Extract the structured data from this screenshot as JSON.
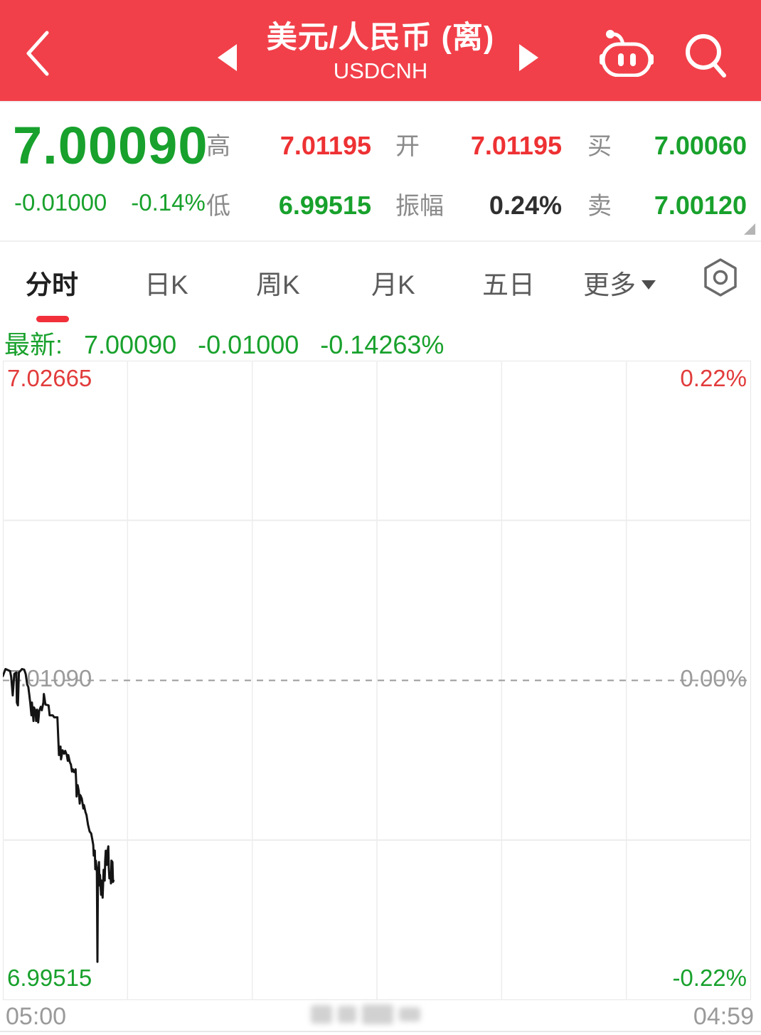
{
  "palette": {
    "header_red": "#f1404a",
    "up_red": "#ee3133",
    "down_green": "#18a12c",
    "neutral_dark": "#2f2f2f",
    "label_gray": "#8b8b8b",
    "axis_gray": "#9b9b9b",
    "active_tab_underline": "#f1303a"
  },
  "header": {
    "title": "美元/人民币 (离)",
    "subtitle": "USDCNH",
    "icons": {
      "back": "chevron-left",
      "prev_instrument": "triangle-left",
      "next_instrument": "triangle-right",
      "robot": "robot-assistant",
      "search": "magnifier"
    }
  },
  "quote": {
    "last": "7.00090",
    "change": "-0.01000",
    "change_pct": "-0.14%",
    "fields": [
      {
        "label": "高",
        "value": "7.01195",
        "color": "red"
      },
      {
        "label": "低",
        "value": "6.99515",
        "color": "green"
      },
      {
        "label": "开",
        "value": "7.01195",
        "color": "red"
      },
      {
        "label": "振幅",
        "value": "0.24%",
        "color": "dark"
      },
      {
        "label": "买",
        "value": "7.00060",
        "color": "green"
      },
      {
        "label": "卖",
        "value": "7.00120",
        "color": "green"
      }
    ]
  },
  "tabs": [
    {
      "label": "分时",
      "active": true
    },
    {
      "label": "日K",
      "active": false
    },
    {
      "label": "周K",
      "active": false
    },
    {
      "label": "月K",
      "active": false
    },
    {
      "label": "五日",
      "active": false
    },
    {
      "label": "更多",
      "active": false
    }
  ],
  "latest_bar": {
    "prefix": "最新:",
    "price": "7.00090",
    "change": "-0.01000",
    "change_pct": "-0.14263%"
  },
  "chart_data": {
    "type": "line",
    "x_labels": [
      "05:00",
      "04:59"
    ],
    "x_total_minutes": 1440,
    "ylim": [
      6.99515,
      7.02665
    ],
    "baseline": 7.0109,
    "y_left_labels": [
      "7.02665",
      "7.01090",
      "6.99515"
    ],
    "y_right_labels": [
      "0.22%",
      "0.00%",
      "-0.22%"
    ],
    "grid": {
      "columns": 6,
      "rows": 4,
      "baseline_dashed": true
    },
    "legend_position": "none",
    "points": [
      [
        0,
        7.01111
      ],
      [
        5,
        7.01146
      ],
      [
        14,
        7.01136
      ],
      [
        16,
        7.01108
      ],
      [
        19,
        7.01016
      ],
      [
        22,
        7.01122
      ],
      [
        26,
        7.01129
      ],
      [
        27,
        7.00981
      ],
      [
        29,
        7.00967
      ],
      [
        31,
        7.01129
      ],
      [
        37,
        7.01146
      ],
      [
        41,
        7.01143
      ],
      [
        44,
        7.01122
      ],
      [
        47,
        7.01069
      ],
      [
        49,
        7.01058
      ],
      [
        51,
        7.01016
      ],
      [
        53,
        7.00974
      ],
      [
        55,
        7.00918
      ],
      [
        56,
        7.00981
      ],
      [
        59,
        7.0089
      ],
      [
        60,
        7.00957
      ],
      [
        63,
        7.00939
      ],
      [
        64,
        7.0089
      ],
      [
        66,
        7.00946
      ],
      [
        68,
        7.00883
      ],
      [
        70,
        7.00939
      ],
      [
        73,
        7.0096
      ],
      [
        75,
        7.00943
      ],
      [
        78,
        7.00981
      ],
      [
        79,
        7.01023
      ],
      [
        82,
        7.00971
      ],
      [
        88,
        7.00967
      ],
      [
        90,
        7.00918
      ],
      [
        96,
        7.00918
      ],
      [
        99,
        7.00908
      ],
      [
        105,
        7.00908
      ],
      [
        108,
        7.00722
      ],
      [
        111,
        7.00764
      ],
      [
        112,
        7.00701
      ],
      [
        115,
        7.00746
      ],
      [
        118,
        7.00729
      ],
      [
        120,
        7.00743
      ],
      [
        123,
        7.00722
      ],
      [
        125,
        7.00694
      ],
      [
        126,
        7.00722
      ],
      [
        129,
        7.00687
      ],
      [
        131,
        7.00676
      ],
      [
        133,
        7.00641
      ],
      [
        135,
        7.00652
      ],
      [
        137,
        7.00638
      ],
      [
        140,
        7.00652
      ],
      [
        141,
        7.00599
      ],
      [
        142,
        7.00518
      ],
      [
        144,
        7.00574
      ],
      [
        146,
        7.00546
      ],
      [
        148,
        7.00483
      ],
      [
        149,
        7.00525
      ],
      [
        152,
        7.00508
      ],
      [
        155,
        7.00459
      ],
      [
        156,
        7.00476
      ],
      [
        159,
        7.00441
      ],
      [
        161,
        7.00427
      ],
      [
        164,
        7.00378
      ],
      [
        167,
        7.00346
      ],
      [
        170,
        7.00336
      ],
      [
        172,
        7.00308
      ],
      [
        174,
        7.0028
      ],
      [
        175,
        7.00227
      ],
      [
        177,
        7.00252
      ],
      [
        178,
        7.0016
      ],
      [
        179,
        7.00202
      ],
      [
        181,
        7.00146
      ],
      [
        182,
        6.99704
      ],
      [
        183,
        7.00125
      ],
      [
        185,
        7.00195
      ],
      [
        186,
        7.0008
      ],
      [
        187,
        7.00132
      ],
      [
        189,
        7.00034
      ],
      [
        190,
        7.00104
      ],
      [
        192,
        7.0002
      ],
      [
        193,
        7.00087
      ],
      [
        194,
        7.00157
      ],
      [
        196,
        7.00104
      ],
      [
        197,
        7.00202
      ],
      [
        198,
        7.00251
      ],
      [
        200,
        7.00181
      ],
      [
        201,
        7.00237
      ],
      [
        203,
        7.00273
      ],
      [
        204,
        7.00167
      ],
      [
        205,
        7.00115
      ],
      [
        207,
        7.00139
      ],
      [
        208,
        7.0009
      ],
      [
        209,
        7.00202
      ],
      [
        211,
        7.00195
      ],
      [
        212,
        7.00097
      ],
      [
        213,
        7.00104
      ]
    ]
  }
}
